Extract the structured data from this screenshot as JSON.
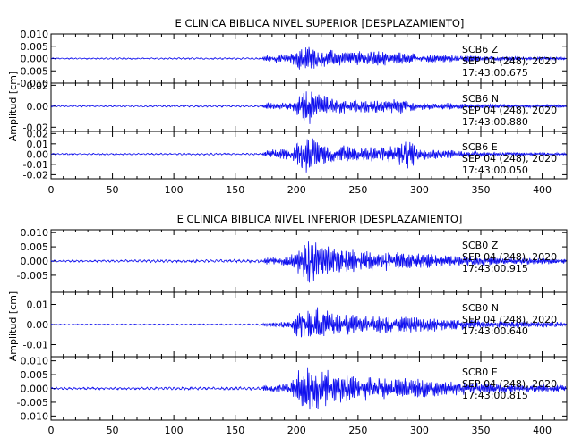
{
  "chart_data": [
    {
      "type": "line",
      "title": "E CLINICA BIBLICA NIVEL SUPERIOR [DESPLAZAMIENTO]",
      "ylabel": "Amplitud [cm]",
      "xlim": [
        0,
        420
      ],
      "x_ticks": [
        0,
        50,
        100,
        150,
        200,
        250,
        300,
        350,
        400
      ],
      "color": "#1010ee",
      "series": [
        {
          "name": "SCB6 Z",
          "station": "SCB6",
          "component": "Z",
          "date": "SEP 04 (248), 2020",
          "time": "17:43:00.675",
          "ylim": [
            -0.01,
            0.01
          ],
          "y_ticks": [
            "0.010",
            "0.005",
            "0.000",
            "-0.005",
            "-0.010"
          ],
          "envelope": {
            "x": [
              0,
              172,
              175,
              195,
              202,
              210,
              218,
              230,
              250,
              265,
              300,
              330,
              360,
              400,
              420
            ],
            "amp": [
              0.0003,
              0.0004,
              0.0015,
              0.002,
              0.0045,
              0.006,
              0.004,
              0.0035,
              0.003,
              0.0032,
              0.002,
              0.0015,
              0.001,
              0.0007,
              0.0006
            ]
          }
        },
        {
          "name": "SCB6 N",
          "station": "SCB6",
          "component": "N",
          "date": "SEP 04 (248), 2020",
          "time": "17:43:00.880",
          "ylim": [
            -0.024,
            0.022
          ],
          "y_ticks": [
            "0.02",
            "0.00",
            "-0.02"
          ],
          "envelope": {
            "x": [
              0,
              172,
              175,
              195,
              202,
              210,
              218,
              230,
              250,
              270,
              285,
              300,
              330,
              360,
              400,
              420
            ],
            "amp": [
              0.0008,
              0.001,
              0.003,
              0.004,
              0.01,
              0.02,
              0.012,
              0.008,
              0.007,
              0.006,
              0.008,
              0.004,
              0.003,
              0.002,
              0.0015,
              0.0012
            ]
          }
        },
        {
          "name": "SCB6 E",
          "station": "SCB6",
          "component": "E",
          "date": "SEP 04 (248), 2020",
          "time": "17:43:00.050",
          "ylim": [
            -0.024,
            0.022
          ],
          "y_ticks": [
            "0.02",
            "0.01",
            "0.00",
            "-0.01",
            "-0.02"
          ],
          "envelope": {
            "x": [
              0,
              172,
              175,
              195,
              202,
              210,
              218,
              230,
              250,
              270,
              285,
              292,
              300,
              330,
              360,
              400,
              420
            ],
            "amp": [
              0.0008,
              0.001,
              0.004,
              0.006,
              0.015,
              0.02,
              0.012,
              0.01,
              0.008,
              0.007,
              0.012,
              0.015,
              0.006,
              0.004,
              0.002,
              0.0015,
              0.0012
            ]
          }
        }
      ]
    },
    {
      "type": "line",
      "title": "E CLINICA BIBLICA NIVEL INFERIOR [DESPLAZAMIENTO]",
      "ylabel": "Amplitud [cm]",
      "xlim": [
        0,
        420
      ],
      "x_ticks": [
        0,
        50,
        100,
        150,
        200,
        250,
        300,
        350,
        400
      ],
      "color": "#1010ee",
      "series": [
        {
          "name": "SCB0 Z",
          "station": "SCB0",
          "component": "Z",
          "date": "SEP 04 (248), 2020",
          "time": "17:43:00.915",
          "ylim": [
            -0.011,
            0.011
          ],
          "y_ticks": [
            "0.010",
            "0.005",
            "0.000",
            "-0.005"
          ],
          "envelope": {
            "x": [
              0,
              172,
              175,
              195,
              202,
              210,
              218,
              230,
              250,
              280,
              300,
              330,
              360,
              400,
              420
            ],
            "amp": [
              0.0004,
              0.0006,
              0.0012,
              0.002,
              0.006,
              0.009,
              0.006,
              0.0055,
              0.004,
              0.0035,
              0.003,
              0.002,
              0.0015,
              0.0012,
              0.001
            ]
          }
        },
        {
          "name": "SCB0 N",
          "station": "SCB0",
          "component": "N",
          "date": "SEP 04 (248), 2020",
          "time": "17:43:00.640",
          "ylim": [
            -0.016,
            0.016
          ],
          "y_ticks": [
            "0.01",
            "0.00",
            "-0.01"
          ],
          "envelope": {
            "x": [
              0,
              172,
              175,
              195,
              202,
              210,
              218,
              230,
              250,
              280,
              300,
              330,
              360,
              400,
              420
            ],
            "amp": [
              0.0003,
              0.0004,
              0.001,
              0.002,
              0.008,
              0.012,
              0.009,
              0.007,
              0.005,
              0.0045,
              0.004,
              0.003,
              0.002,
              0.0015,
              0.0012
            ]
          }
        },
        {
          "name": "SCB0 E",
          "station": "SCB0",
          "component": "E",
          "date": "SEP 04 (248), 2020",
          "time": "17:43:00.815",
          "ylim": [
            -0.0115,
            0.0115
          ],
          "y_ticks": [
            "0.010",
            "0.005",
            "0.000",
            "-0.005",
            "-0.010"
          ],
          "envelope": {
            "x": [
              0,
              172,
              175,
              195,
              202,
              210,
              218,
              230,
              250,
              280,
              300,
              330,
              360,
              400,
              420
            ],
            "amp": [
              0.0004,
              0.0006,
              0.0012,
              0.002,
              0.008,
              0.0105,
              0.008,
              0.006,
              0.0045,
              0.004,
              0.0035,
              0.0025,
              0.002,
              0.0015,
              0.0012
            ]
          }
        }
      ]
    }
  ]
}
